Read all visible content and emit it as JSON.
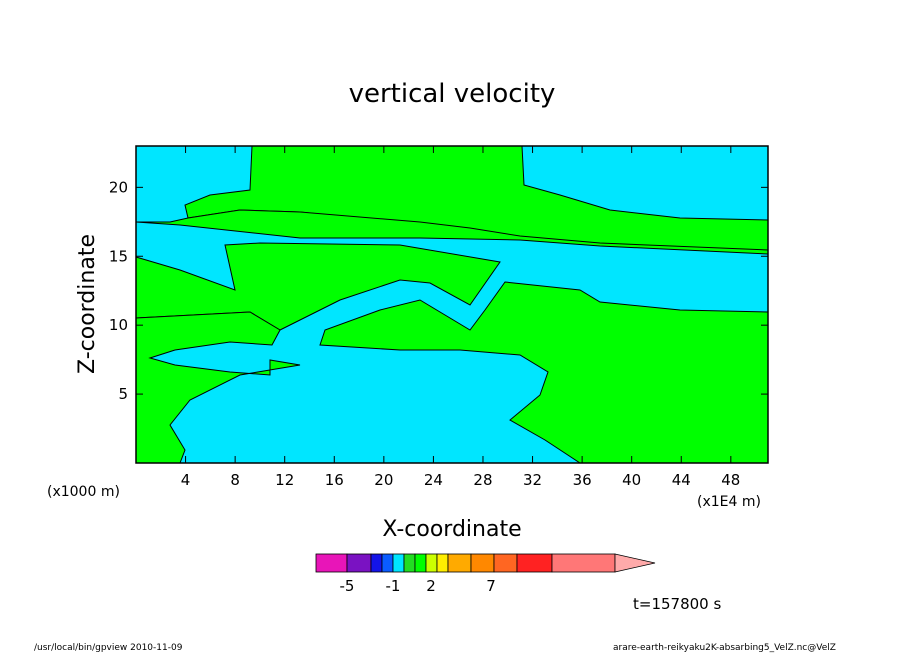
{
  "chart_data": {
    "type": "heatmap",
    "title": "vertical velocity",
    "xlabel": "X-coordinate",
    "ylabel": "Z-coordinate",
    "x_ticks": [
      "4",
      "8",
      "12",
      "16",
      "20",
      "24",
      "28",
      "32",
      "36",
      "40",
      "44",
      "48"
    ],
    "y_ticks": [
      "5",
      "10",
      "15",
      "20"
    ],
    "x_unit_left": "(x1000 m)",
    "x_unit_right": "(x1E4 m)",
    "xlim": [
      0,
      51
    ],
    "ylim": [
      0,
      23
    ],
    "colorbar": {
      "colors": [
        "#e815b8",
        "#7a12c2",
        "#1414e8",
        "#0a5cff",
        "#00e6ff",
        "#22dd22",
        "#00ff00",
        "#ccff00",
        "#ffee00",
        "#ffaa00",
        "#ff8800",
        "#ff6622",
        "#ff2222",
        "#ff7777",
        "#ffaaaa"
      ],
      "tick_labels": [
        "-5",
        "-1",
        "2",
        "7"
      ]
    },
    "time_label": "t=157800 s",
    "regions": [
      {
        "color": "#00e6ff",
        "label": "background"
      },
      {
        "color": "#00ff00",
        "label": "filled contour"
      }
    ]
  },
  "footer": {
    "left": "/usr/local/bin/gpview  2010-11-09",
    "right": "arare-earth-reikyaku2K-absarbing5_VelZ.nc@VelZ"
  }
}
